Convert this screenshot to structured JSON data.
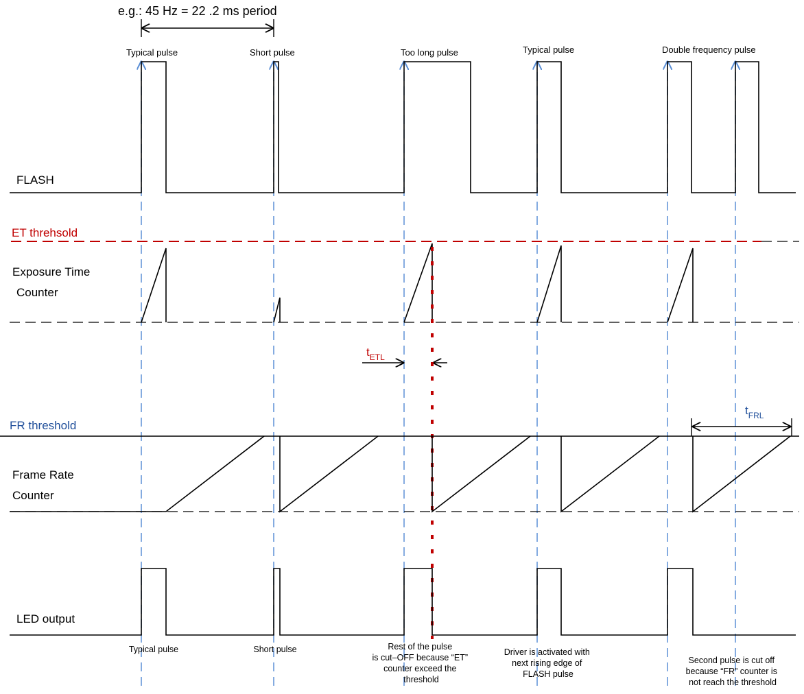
{
  "period_label": "e.g.: 45 Hz = 22 .2 ms period",
  "top_labels": [
    "Typical pulse",
    "Short pulse",
    "Too long pulse",
    "Typical pulse",
    "Double frequency pulse"
  ],
  "signals": {
    "flash": "FLASH",
    "et_threshold": "ET threhsold",
    "et_counter_line1": "Exposure Time",
    "et_counter_line2": "Counter",
    "fr_threshold": "FR threshold",
    "fr_counter_line1": "Frame Rate",
    "fr_counter_line2": "Counter",
    "led": "LED output"
  },
  "t_etl": {
    "main": "t",
    "sub": "ETL"
  },
  "t_frl": {
    "main": "t",
    "sub": "FRL"
  },
  "bottom_notes": {
    "n1": [
      "Typical pulse"
    ],
    "n2": [
      "Short pulse"
    ],
    "n3": [
      "Rest of the pulse",
      "is cut–OFF because “ET”",
      "counter exceed the",
      "threshold"
    ],
    "n4": [
      "Driver is activated with",
      "next rising edge of",
      "FLASH pulse"
    ],
    "n5": [
      "Second pulse is cut off",
      "because “FR” counter is",
      "not reach the threshold"
    ]
  },
  "colors": {
    "et_threshold": "#c00000",
    "fr_threshold": "#1f4e9a",
    "marker_lines": "#5b8fd6"
  }
}
